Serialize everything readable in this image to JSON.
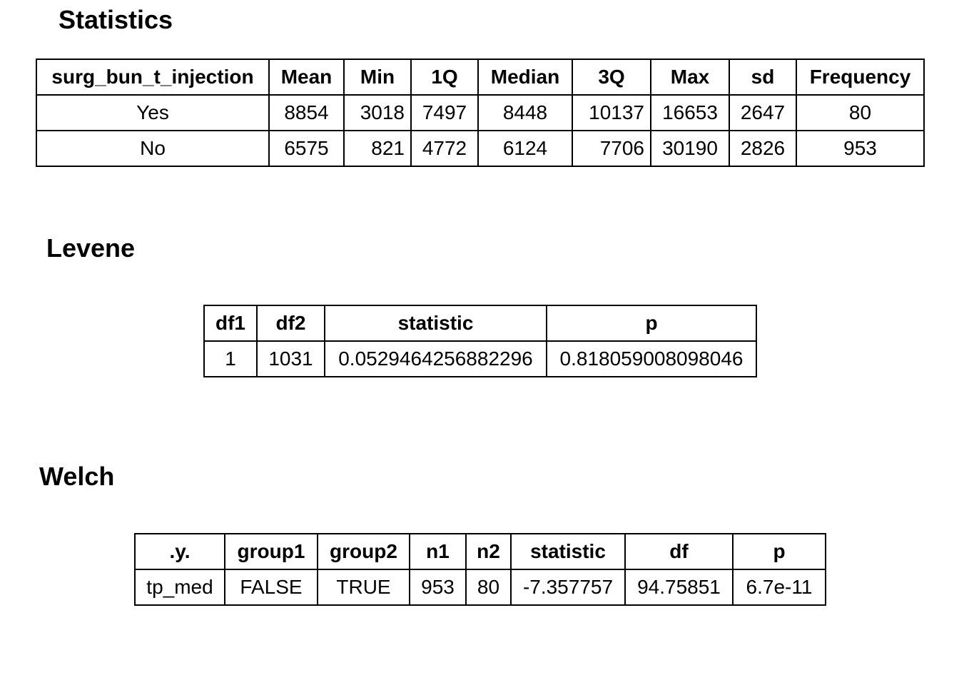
{
  "statistics": {
    "title": "Statistics",
    "headers": [
      "surg_bun_t_injection",
      "Mean",
      "Min",
      "1Q",
      "Median",
      "3Q",
      "Max",
      "sd",
      "Frequency"
    ],
    "rows": [
      [
        "Yes",
        "8854",
        "3018",
        "7497",
        "8448",
        "10137",
        "16653",
        "2647",
        "80"
      ],
      [
        "No",
        "6575",
        "821",
        "4772",
        "6124",
        "7706",
        "30190",
        "2826",
        "953"
      ]
    ]
  },
  "levene": {
    "title": "Levene",
    "headers": [
      "df1",
      "df2",
      "statistic",
      "p"
    ],
    "rows": [
      [
        "1",
        "1031",
        "0.0529464256882296",
        "0.818059008098046"
      ]
    ]
  },
  "welch": {
    "title": "Welch",
    "headers": [
      ".y.",
      "group1",
      "group2",
      "n1",
      "n2",
      "statistic",
      "df",
      "p"
    ],
    "rows": [
      [
        "tp_med",
        "FALSE",
        "TRUE",
        "953",
        "80",
        "-7.357757",
        "94.75851",
        "6.7e-11"
      ]
    ]
  }
}
